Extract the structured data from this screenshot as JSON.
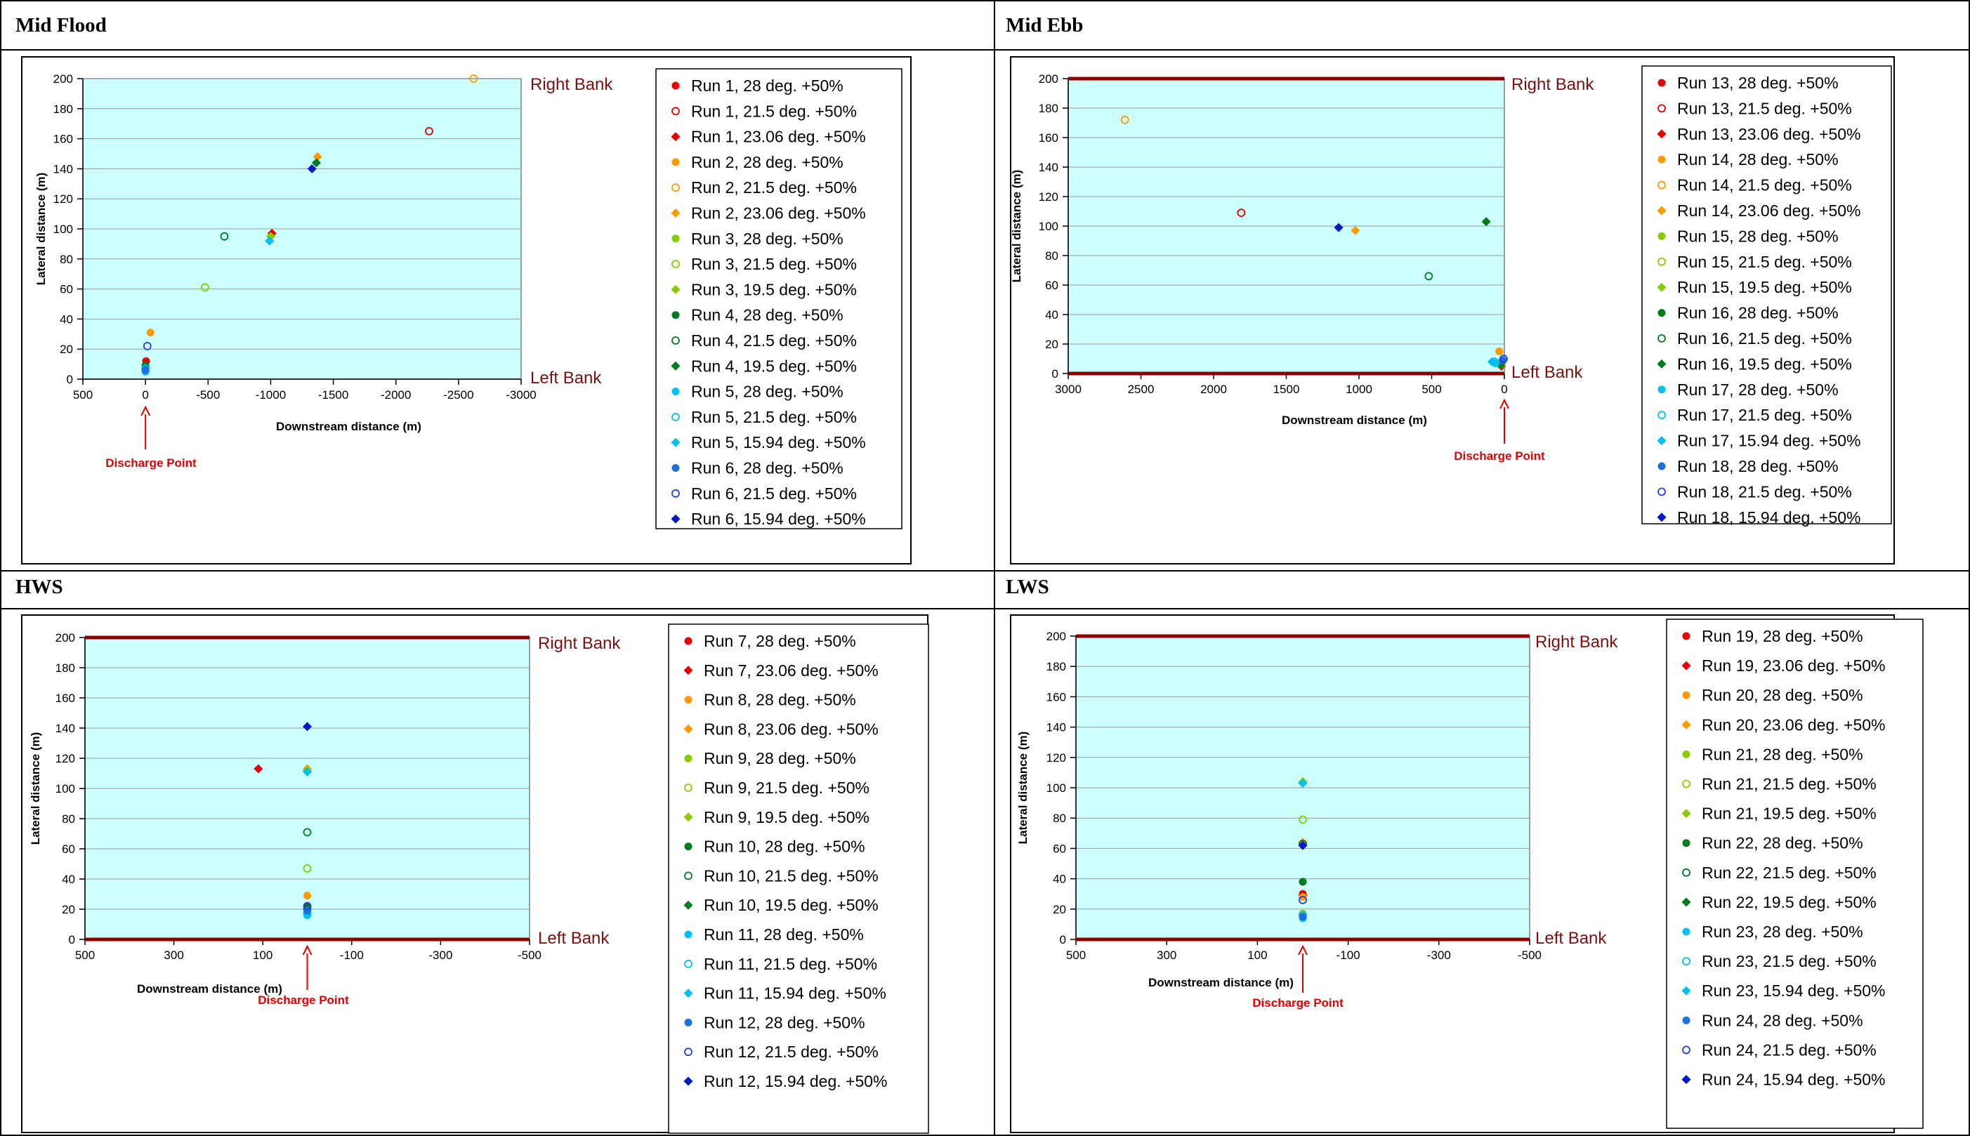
{
  "panels": [
    {
      "title": "Mid Flood"
    },
    {
      "title": "Mid Ebb"
    },
    {
      "title": "HWS"
    },
    {
      "title": "LWS"
    }
  ],
  "chart_data": [
    {
      "type": "scatter",
      "title": "Mid Flood",
      "xlabel": "Downstream distance (m)",
      "ylabel": "Lateral distance (m)",
      "xlim": [
        500,
        -3000
      ],
      "ylim": [
        0,
        200
      ],
      "xticks": [
        500,
        0,
        -500,
        -1000,
        -1500,
        -2000,
        -2500,
        -3000
      ],
      "yticks": [
        0,
        20,
        40,
        60,
        80,
        100,
        120,
        140,
        160,
        180,
        200
      ],
      "bank_lines": false,
      "bank_labels": {
        "right": "Right Bank",
        "left": "Left Bank"
      },
      "discharge_label": "Discharge Point",
      "discharge_x": 0,
      "grid": true,
      "legend": "right",
      "series": [
        {
          "name": "Run 1, 28 deg. +50%",
          "color": "#e60000",
          "marker": "dot",
          "x": [
            -5
          ],
          "y": [
            12
          ]
        },
        {
          "name": "Run 1, 21.5 deg. +50%",
          "color": "#e60000",
          "marker": "ring",
          "x": [
            -2265
          ],
          "y": [
            165
          ]
        },
        {
          "name": "Run 1, 23.06 deg. +50%",
          "color": "#e60000",
          "marker": "diamond",
          "x": [
            -1010
          ],
          "y": [
            97
          ]
        },
        {
          "name": "Run 2, 28 deg. +50%",
          "color": "#ff9900",
          "marker": "dot",
          "x": [
            -40
          ],
          "y": [
            31
          ]
        },
        {
          "name": "Run 2, 21.5 deg. +50%",
          "color": "#ff9900",
          "marker": "ring",
          "x": [
            -2620
          ],
          "y": [
            200
          ]
        },
        {
          "name": "Run 2, 23.06 deg. +50%",
          "color": "#ff9900",
          "marker": "diamond",
          "x": [
            -1375
          ],
          "y": [
            148
          ]
        },
        {
          "name": "Run 3, 28 deg. +50%",
          "color": "#88cc00",
          "marker": "dot",
          "x": [
            0
          ],
          "y": [
            7
          ]
        },
        {
          "name": "Run 3, 21.5 deg. +50%",
          "color": "#88cc00",
          "marker": "ring",
          "x": [
            -475
          ],
          "y": [
            61
          ]
        },
        {
          "name": "Run 3, 19.5 deg. +50%",
          "color": "#88cc00",
          "marker": "diamond",
          "x": [
            -1000
          ],
          "y": [
            95
          ]
        },
        {
          "name": "Run 4, 28 deg. +50%",
          "color": "#007a1f",
          "marker": "dot",
          "x": [
            0
          ],
          "y": [
            9
          ]
        },
        {
          "name": "Run 4, 21.5 deg. +50%",
          "color": "#007a1f",
          "marker": "ring",
          "x": [
            -630
          ],
          "y": [
            95
          ]
        },
        {
          "name": "Run 4, 19.5 deg. +50%",
          "color": "#007a1f",
          "marker": "diamond",
          "x": [
            -1365
          ],
          "y": [
            144
          ]
        },
        {
          "name": "Run 5, 28 deg. +50%",
          "color": "#00c0f0",
          "marker": "dot",
          "x": [
            0
          ],
          "y": [
            5
          ]
        },
        {
          "name": "Run 5, 21.5 deg. +50%",
          "color": "#00c0f0",
          "marker": "ring",
          "x": [
            0
          ],
          "y": [
            7
          ]
        },
        {
          "name": "Run 5, 15.94 deg. +50%",
          "color": "#00c0f0",
          "marker": "diamond",
          "x": [
            -990
          ],
          "y": [
            92
          ]
        },
        {
          "name": "Run 6, 28 deg. +50%",
          "color": "#1f6fe0",
          "marker": "dot",
          "x": [
            0
          ],
          "y": [
            6
          ]
        },
        {
          "name": "Run 6, 21.5 deg. +50%",
          "color": "#1f3fe0",
          "marker": "ring",
          "x": [
            -15
          ],
          "y": [
            22
          ]
        },
        {
          "name": "Run 6, 15.94 deg. +50%",
          "color": "#0018c8",
          "marker": "diamond",
          "x": [
            -1330
          ],
          "y": [
            140
          ]
        }
      ]
    },
    {
      "type": "scatter",
      "title": "Mid Ebb",
      "xlabel": "Downstream distance (m)",
      "ylabel": "Lateral distance (m)",
      "xlim": [
        3000,
        0
      ],
      "ylim": [
        0,
        200
      ],
      "xticks": [
        3000,
        2500,
        2000,
        1500,
        1000,
        500,
        0
      ],
      "yticks": [
        0,
        20,
        40,
        60,
        80,
        100,
        120,
        140,
        160,
        180,
        200
      ],
      "bank_lines": true,
      "bank_labels": {
        "right": "Right Bank",
        "left": "Left Bank"
      },
      "discharge_label": "Discharge Point",
      "discharge_x": 0,
      "grid": true,
      "legend": "right",
      "series": [
        {
          "name": "Run 13, 28 deg. +50%",
          "color": "#e60000",
          "marker": "dot",
          "x": [
            30
          ],
          "y": [
            7
          ]
        },
        {
          "name": "Run 13, 21.5 deg. +50%",
          "color": "#e60000",
          "marker": "ring",
          "x": [
            1810
          ],
          "y": [
            109
          ]
        },
        {
          "name": "Run 13, 23.06 deg. +50%",
          "color": "#e60000",
          "marker": "diamond",
          "x": [
            20
          ],
          "y": [
            5
          ]
        },
        {
          "name": "Run 14, 28 deg. +50%",
          "color": "#ff9900",
          "marker": "dot",
          "x": [
            35
          ],
          "y": [
            15
          ]
        },
        {
          "name": "Run 14, 21.5 deg. +50%",
          "color": "#ff9900",
          "marker": "ring",
          "x": [
            2610
          ],
          "y": [
            172
          ]
        },
        {
          "name": "Run 14, 23.06 deg. +50%",
          "color": "#ff9900",
          "marker": "diamond",
          "x": [
            1025
          ],
          "y": [
            97
          ]
        },
        {
          "name": "Run 15, 28 deg. +50%",
          "color": "#88cc00",
          "marker": "dot",
          "x": [
            20
          ],
          "y": [
            6
          ]
        },
        {
          "name": "Run 15, 21.5 deg. +50%",
          "color": "#88cc00",
          "marker": "ring",
          "x": [
            15
          ],
          "y": [
            8
          ]
        },
        {
          "name": "Run 15, 19.5 deg. +50%",
          "color": "#88cc00",
          "marker": "diamond",
          "x": [
            25
          ],
          "y": [
            7
          ]
        },
        {
          "name": "Run 16, 28 deg. +50%",
          "color": "#007a1f",
          "marker": "dot",
          "x": [
            25
          ],
          "y": [
            6
          ]
        },
        {
          "name": "Run 16, 21.5 deg. +50%",
          "color": "#007a1f",
          "marker": "ring",
          "x": [
            520
          ],
          "y": [
            66
          ]
        },
        {
          "name": "Run 16, 19.5 deg. +50%",
          "color": "#007a1f",
          "marker": "diamond",
          "x": [
            125
          ],
          "y": [
            103
          ]
        },
        {
          "name": "Run 17, 28 deg. +50%",
          "color": "#00c0f0",
          "marker": "dot",
          "x": [
            60
          ],
          "y": [
            7
          ]
        },
        {
          "name": "Run 17, 21.5 deg. +50%",
          "color": "#00c0f0",
          "marker": "ring",
          "x": [
            70
          ],
          "y": [
            8
          ]
        },
        {
          "name": "Run 17, 15.94 deg. +50%",
          "color": "#00c0f0",
          "marker": "diamond",
          "x": [
            85
          ],
          "y": [
            8
          ]
        },
        {
          "name": "Run 18, 28 deg. +50%",
          "color": "#1f6fe0",
          "marker": "dot",
          "x": [
            10
          ],
          "y": [
            9
          ]
        },
        {
          "name": "Run 18, 21.5 deg. +50%",
          "color": "#1f3fe0",
          "marker": "ring",
          "x": [
            5
          ],
          "y": [
            10
          ]
        },
        {
          "name": "Run 18, 15.94 deg. +50%",
          "color": "#0018c8",
          "marker": "diamond",
          "x": [
            1140
          ],
          "y": [
            99
          ]
        }
      ]
    },
    {
      "type": "scatter",
      "title": "HWS",
      "xlabel": "Downstream distance (m)",
      "ylabel": "Lateral distance (m)",
      "xlim": [
        500,
        -500
      ],
      "ylim": [
        0,
        200
      ],
      "xticks": [
        500,
        300,
        100,
        -100,
        -300,
        -500
      ],
      "yticks": [
        0,
        20,
        40,
        60,
        80,
        100,
        120,
        140,
        160,
        180,
        200
      ],
      "bank_lines": true,
      "bank_labels": {
        "right": "Right Bank",
        "left": "Left Bank"
      },
      "discharge_label": "Discharge Point",
      "discharge_x": 0,
      "grid": true,
      "legend": "right",
      "series": [
        {
          "name": "Run 7, 28 deg. +50%",
          "color": "#e60000",
          "marker": "dot",
          "x": [
            0
          ],
          "y": [
            22
          ]
        },
        {
          "name": "Run 7, 23.06 deg. +50%",
          "color": "#e60000",
          "marker": "diamond",
          "x": [
            110
          ],
          "y": [
            113
          ]
        },
        {
          "name": "Run 8, 28 deg. +50%",
          "color": "#ff9900",
          "marker": "dot",
          "x": [
            0
          ],
          "y": [
            29
          ]
        },
        {
          "name": "Run 8, 23.06 deg. +50%",
          "color": "#ff9900",
          "marker": "diamond",
          "x": [
            0
          ],
          "y": [
            113
          ]
        },
        {
          "name": "Run 9, 28 deg. +50%",
          "color": "#88cc00",
          "marker": "dot",
          "x": [
            0
          ],
          "y": [
            18
          ]
        },
        {
          "name": "Run 9, 21.5 deg. +50%",
          "color": "#88cc00",
          "marker": "ring",
          "x": [
            0
          ],
          "y": [
            47
          ]
        },
        {
          "name": "Run 9, 19.5 deg. +50%",
          "color": "#88cc00",
          "marker": "diamond",
          "x": [
            0
          ],
          "y": [
            112
          ]
        },
        {
          "name": "Run 10, 28 deg. +50%",
          "color": "#007a1f",
          "marker": "dot",
          "x": [
            0
          ],
          "y": [
            21
          ]
        },
        {
          "name": "Run 10, 21.5 deg. +50%",
          "color": "#007a1f",
          "marker": "ring",
          "x": [
            0
          ],
          "y": [
            71
          ]
        },
        {
          "name": "Run 10, 19.5 deg. +50%",
          "color": "#007a1f",
          "marker": "diamond",
          "x": [
            0
          ],
          "y": [
            20
          ]
        },
        {
          "name": "Run 11, 28 deg. +50%",
          "color": "#00c0f0",
          "marker": "dot",
          "x": [
            0
          ],
          "y": [
            16
          ]
        },
        {
          "name": "Run 11, 21.5 deg. +50%",
          "color": "#00c0f0",
          "marker": "ring",
          "x": [
            0
          ],
          "y": [
            17
          ]
        },
        {
          "name": "Run 11, 15.94 deg. +50%",
          "color": "#00c0f0",
          "marker": "diamond",
          "x": [
            0
          ],
          "y": [
            111
          ]
        },
        {
          "name": "Run 12, 28 deg. +50%",
          "color": "#1f6fe0",
          "marker": "dot",
          "x": [
            0
          ],
          "y": [
            19
          ]
        },
        {
          "name": "Run 12, 21.5 deg. +50%",
          "color": "#1f3fe0",
          "marker": "ring",
          "x": [
            0
          ],
          "y": [
            22
          ]
        },
        {
          "name": "Run 12, 15.94 deg. +50%",
          "color": "#0018c8",
          "marker": "diamond",
          "x": [
            0
          ],
          "y": [
            141
          ]
        }
      ]
    },
    {
      "type": "scatter",
      "title": "LWS",
      "xlabel": "Downstream distance (m)",
      "ylabel": "Lateral distance (m)",
      "xlim": [
        500,
        -500
      ],
      "ylim": [
        0,
        200
      ],
      "xticks": [
        500,
        300,
        100,
        -100,
        -300,
        -500
      ],
      "yticks": [
        0,
        20,
        40,
        60,
        80,
        100,
        120,
        140,
        160,
        180,
        200
      ],
      "bank_lines": true,
      "bank_labels": {
        "right": "Right Bank",
        "left": "Left Bank"
      },
      "discharge_label": "Discharge Point",
      "discharge_x": 0,
      "grid": true,
      "legend": "right",
      "series": [
        {
          "name": "Run 19, 28 deg. +50%",
          "color": "#e60000",
          "marker": "dot",
          "x": [
            0
          ],
          "y": [
            30
          ]
        },
        {
          "name": "Run 19, 23.06 deg. +50%",
          "color": "#e60000",
          "marker": "diamond",
          "x": [
            0
          ],
          "y": [
            29
          ]
        },
        {
          "name": "Run 20, 28 deg. +50%",
          "color": "#ff9900",
          "marker": "dot",
          "x": [
            0
          ],
          "y": [
            28
          ]
        },
        {
          "name": "Run 20, 23.06 deg. +50%",
          "color": "#ff9900",
          "marker": "diamond",
          "x": [
            0
          ],
          "y": [
            64
          ]
        },
        {
          "name": "Run 21, 28 deg. +50%",
          "color": "#88cc00",
          "marker": "dot",
          "x": [
            0
          ],
          "y": [
            17
          ]
        },
        {
          "name": "Run 21, 21.5 deg. +50%",
          "color": "#88cc00",
          "marker": "ring",
          "x": [
            0
          ],
          "y": [
            79
          ]
        },
        {
          "name": "Run 21, 19.5 deg. +50%",
          "color": "#88cc00",
          "marker": "diamond",
          "x": [
            0
          ],
          "y": [
            104
          ]
        },
        {
          "name": "Run 22, 28 deg. +50%",
          "color": "#007a1f",
          "marker": "dot",
          "x": [
            0
          ],
          "y": [
            38
          ]
        },
        {
          "name": "Run 22, 21.5 deg. +50%",
          "color": "#007a1f",
          "marker": "ring",
          "x": [
            0
          ],
          "y": [
            63
          ]
        },
        {
          "name": "Run 22, 19.5 deg. +50%",
          "color": "#007a1f",
          "marker": "diamond",
          "x": [
            0
          ],
          "y": [
            62
          ]
        },
        {
          "name": "Run 23, 28 deg. +50%",
          "color": "#00c0f0",
          "marker": "dot",
          "x": [
            0
          ],
          "y": [
            14
          ]
        },
        {
          "name": "Run 23, 21.5 deg. +50%",
          "color": "#00c0f0",
          "marker": "ring",
          "x": [
            0
          ],
          "y": [
            16
          ]
        },
        {
          "name": "Run 23, 15.94 deg. +50%",
          "color": "#00c0f0",
          "marker": "diamond",
          "x": [
            0
          ],
          "y": [
            103
          ]
        },
        {
          "name": "Run 24, 28 deg. +50%",
          "color": "#1f6fe0",
          "marker": "dot",
          "x": [
            0
          ],
          "y": [
            15
          ]
        },
        {
          "name": "Run 24, 21.5 deg. +50%",
          "color": "#1f3fe0",
          "marker": "ring",
          "x": [
            0
          ],
          "y": [
            26
          ]
        },
        {
          "name": "Run 24, 15.94 deg. +50%",
          "color": "#0018c8",
          "marker": "diamond",
          "x": [
            0
          ],
          "y": [
            62
          ]
        }
      ]
    }
  ]
}
